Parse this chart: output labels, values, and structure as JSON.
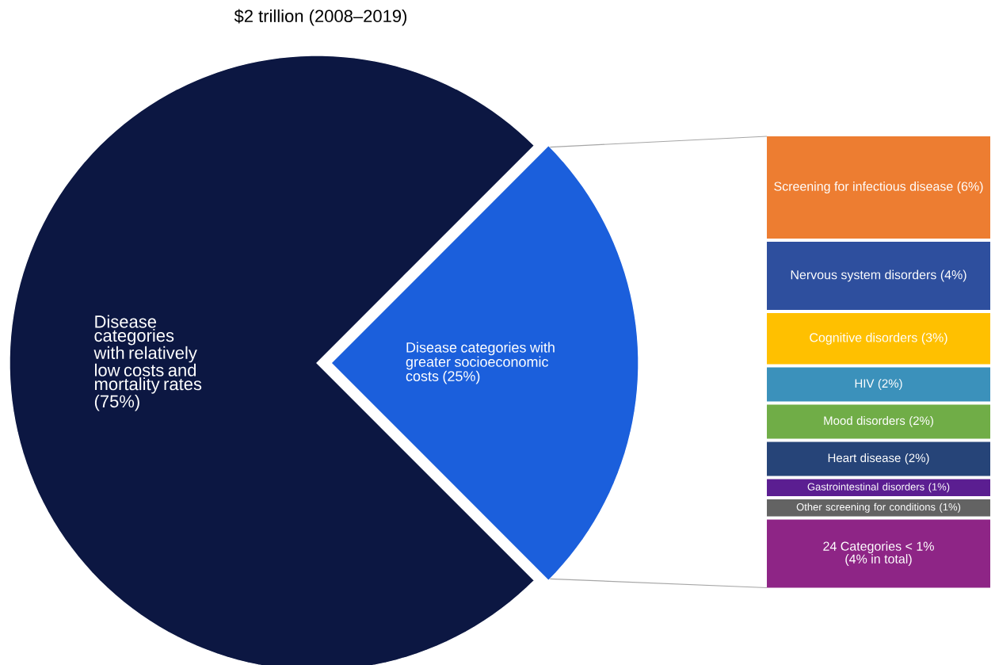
{
  "chart_data": [
    {
      "type": "pie",
      "title": "$2 trillion (2008–2019)",
      "categories": [
        "Disease categories with relatively low costs and mortality rates (75%)",
        "Disease categories with greater socioeconomic costs (25%)"
      ],
      "values": [
        75,
        25
      ],
      "colors": [
        "#0c1742",
        "#1b5fdc"
      ]
    },
    {
      "type": "other",
      "categories": [
        "Screening for infectious disease",
        "Nervous system disorders",
        "Cognitive disorders",
        "HIV",
        "Mood disorders",
        "Heart disease",
        "Gastrointestinal disorders",
        "Other screening for conditions",
        "24 Categories < 1%"
      ],
      "values": [
        6,
        4,
        3,
        2,
        2,
        2,
        1,
        1,
        4
      ],
      "value_labels": [
        "(6%)",
        "(4%)",
        "(3%)",
        "(2%)",
        "(2%)",
        "(2%)",
        "(1%)",
        "(1%)",
        "(4% in total)"
      ],
      "colors": [
        "#ed7d31",
        "#2e4f9e",
        "#ffc000",
        "#3b91bb",
        "#70ad47",
        "#264478",
        "#5b1e91",
        "#636363",
        "#8e2586"
      ]
    }
  ]
}
